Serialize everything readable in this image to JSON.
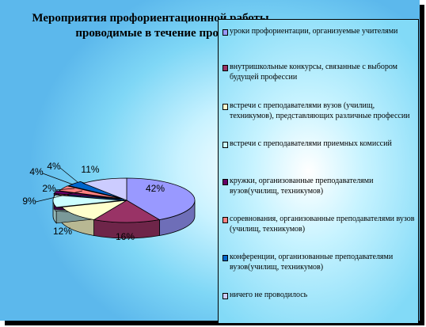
{
  "chart_data": {
    "type": "pie",
    "title": [
      "Мероприятия профориентационной работы",
      "проводимые в течение проц"
    ],
    "slices": [
      {
        "label": "уроки профориентации, организуемые учителями",
        "value": 42,
        "text": "42%",
        "color": "#9999ff"
      },
      {
        "label": "внутришкольные конкурсы, связанные с выбором будущей профессии",
        "value": 16,
        "text": "16%",
        "color": "#993366"
      },
      {
        "label": "встречи с преподавателями вузов (училищ, техникумов), представляющих различные профессии",
        "value": 12,
        "text": "12%",
        "color": "#ffffcc"
      },
      {
        "label": "встречи с преподавателями приемных комиссий",
        "value": 9,
        "text": "9%",
        "color": "#ccffff"
      },
      {
        "label": "кружки, организованные преподавателями вузов(училищ, техникумов)",
        "value": 2,
        "text": "2%",
        "color": "#660066"
      },
      {
        "label": "соревнования, организованные преподавателями вузов (училищ, техникумов)",
        "value": 4,
        "text": "4%",
        "color": "#ff8080"
      },
      {
        "label": "конференции, организованные преподавателями вузов(училищ, техникумов)",
        "value": 4,
        "text": "4%",
        "color": "#0066cc"
      },
      {
        "label": "ничего не проводилось",
        "value": 11,
        "text": "11%",
        "color": "#ccccff"
      }
    ],
    "legend_placement": "right"
  }
}
